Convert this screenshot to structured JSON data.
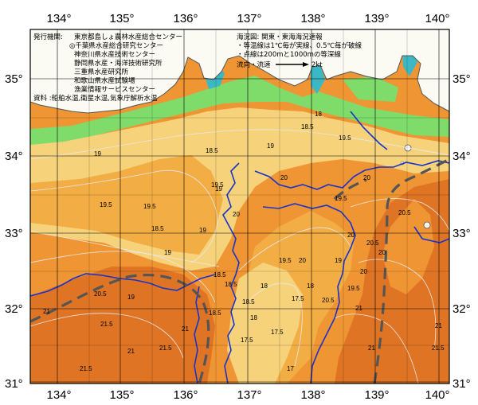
{
  "map": {
    "longitude_labels": [
      "134°",
      "135°",
      "136°",
      "137°",
      "138°",
      "139°",
      "140°"
    ],
    "latitude_labels": [
      "35°",
      "34°",
      "33°",
      "32°",
      "31°"
    ],
    "colors": {
      "land": "#fbfbf3",
      "sea_18": "#f6d27b",
      "sea_19": "#f3ad45",
      "sea_20": "#ef9533",
      "sea_21": "#df7424",
      "coastal_cool": "#7fdc6a",
      "bay": "#3cb8c4",
      "current_axis": "#555555",
      "contour_200m": "#1a33c9"
    }
  },
  "issuer": {
    "heading": "発行機関:",
    "agencies": [
      "東京都島しょ農林水産総合センター",
      "◎千葉県水産総合研究センター",
      "神奈川県水産技術センター",
      "静岡県水産・海洋技術研究所",
      "三重県水産研究所",
      "和歌山県水産試験場",
      "漁業情報サービスセンター"
    ],
    "sources": "資料 :船舶水温,衛星水温,気象庁解析水温"
  },
  "legend": {
    "title": "海況図: 関東・東海海況速報",
    "line1": "・等温線は1℃毎が実線、0.5℃毎が破線",
    "line2": "・点線は200mと1000mの等深線",
    "flow_label": "流向・流速",
    "speed": "2kt"
  },
  "isotherm_labels": [
    {
      "t": "18"
    },
    {
      "t": "18.5"
    },
    {
      "t": "18.5"
    },
    {
      "t": "19"
    },
    {
      "t": "19"
    },
    {
      "t": "19.5"
    },
    {
      "t": "19.5"
    },
    {
      "t": "19.5"
    },
    {
      "t": "19"
    },
    {
      "t": "18.5"
    },
    {
      "t": "19"
    },
    {
      "t": "19.5"
    },
    {
      "t": "20"
    },
    {
      "t": "20"
    },
    {
      "t": "19"
    },
    {
      "t": "18.5"
    },
    {
      "t": "18.5"
    },
    {
      "t": "19.5"
    },
    {
      "t": "20"
    },
    {
      "t": "20"
    },
    {
      "t": "20.5"
    },
    {
      "t": "20.5"
    },
    {
      "t": "20"
    },
    {
      "t": "20"
    },
    {
      "t": "19.5"
    },
    {
      "t": "19"
    },
    {
      "t": "18"
    },
    {
      "t": "18"
    },
    {
      "t": "17.5"
    },
    {
      "t": "17.5"
    },
    {
      "t": "17.5"
    },
    {
      "t": "18"
    },
    {
      "t": "18.5"
    },
    {
      "t": "19"
    },
    {
      "t": "20.5"
    },
    {
      "t": "21"
    },
    {
      "t": "21.5"
    },
    {
      "t": "21.5"
    },
    {
      "t": "21"
    },
    {
      "t": "21.5"
    },
    {
      "t": "21"
    },
    {
      "t": "20.5"
    },
    {
      "t": "21"
    },
    {
      "t": "21"
    },
    {
      "t": "21.5"
    },
    {
      "t": "21"
    },
    {
      "t": "20"
    },
    {
      "t": "19.5"
    },
    {
      "t": "18.5"
    },
    {
      "t": "17"
    }
  ]
}
